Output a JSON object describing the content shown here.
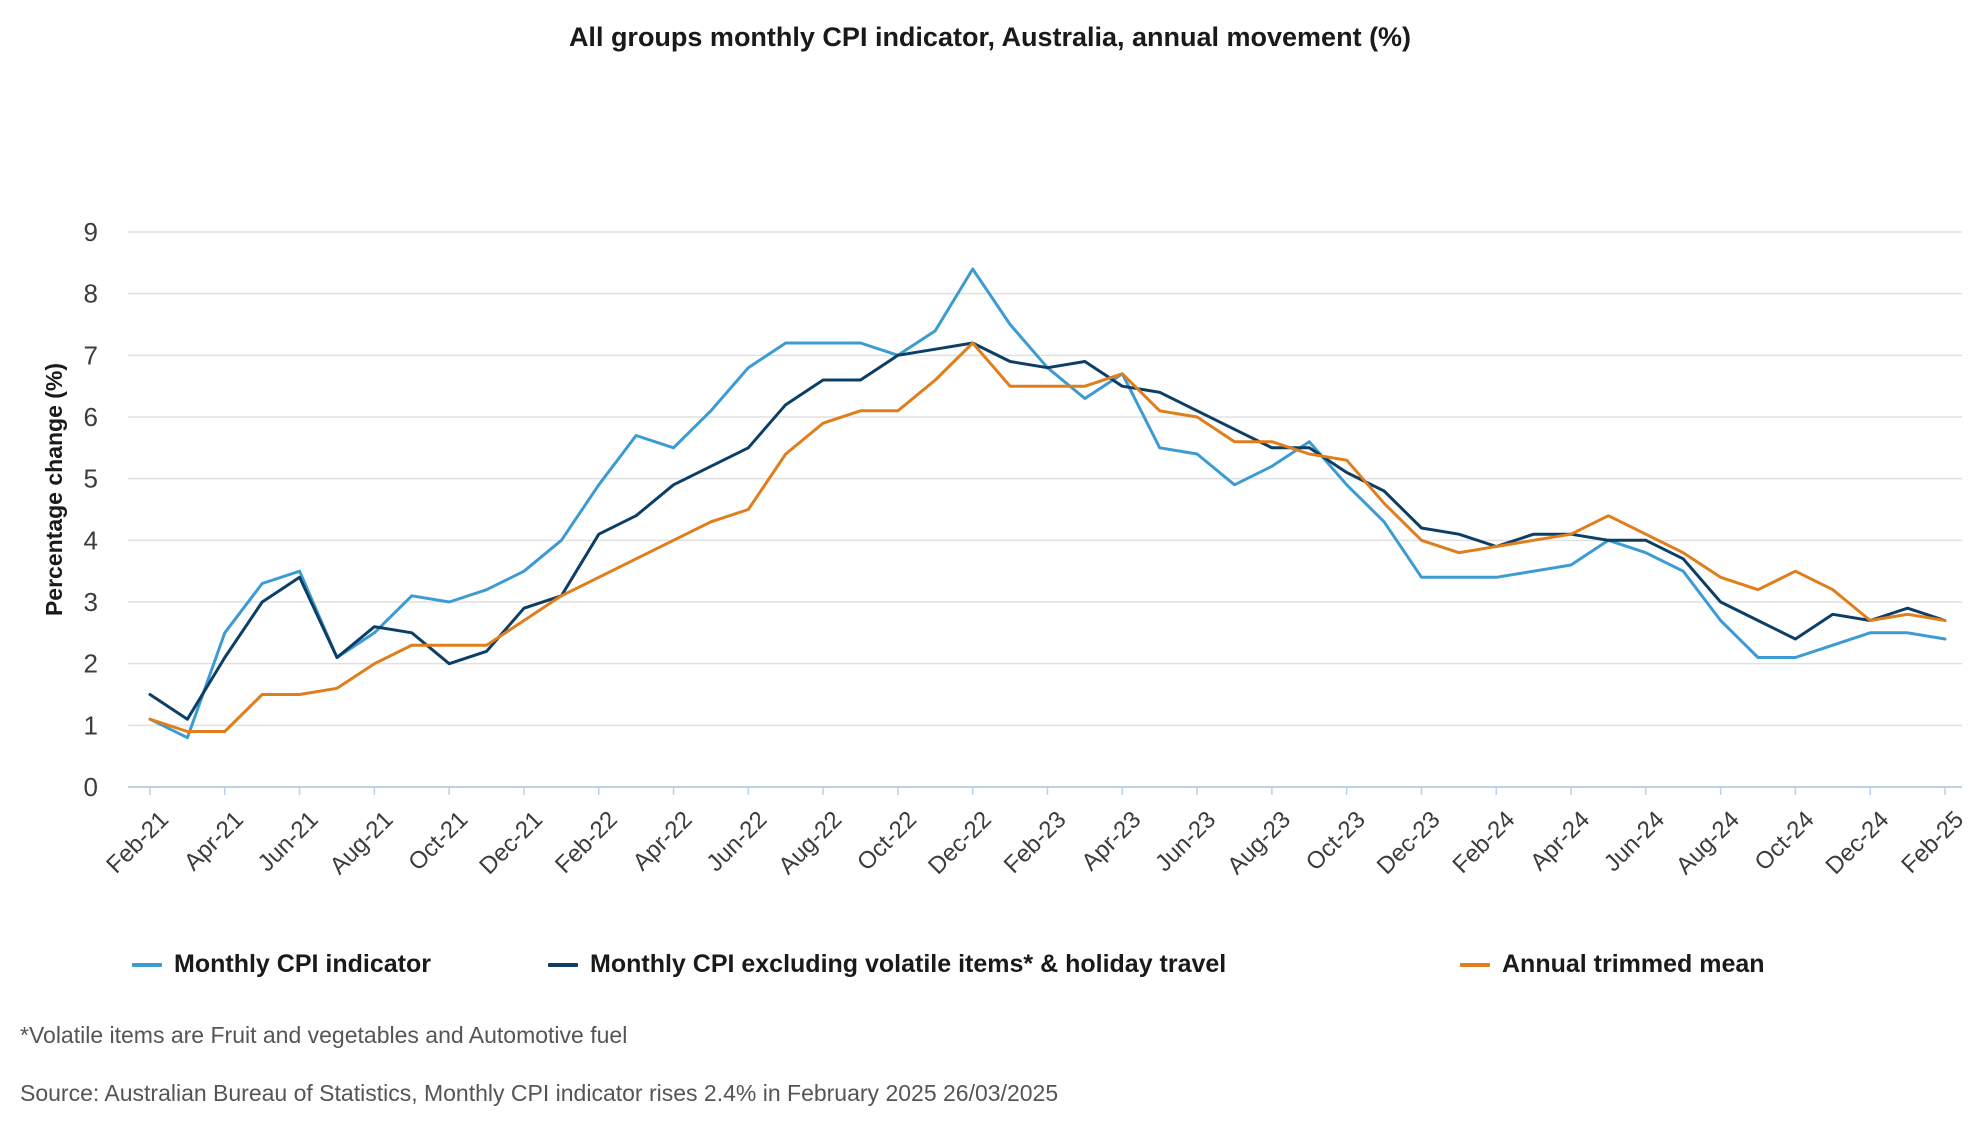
{
  "chart_data": {
    "type": "line",
    "title": "All groups monthly CPI indicator, Australia, annual movement (%)",
    "ylabel": "Percentage change (%)",
    "xlabel": "",
    "ylim": [
      0,
      9
    ],
    "yticks": [
      0,
      1,
      2,
      3,
      4,
      5,
      6,
      7,
      8,
      9
    ],
    "grid": true,
    "legend_position": "bottom",
    "x": [
      "Feb-21",
      "Mar-21",
      "Apr-21",
      "May-21",
      "Jun-21",
      "Jul-21",
      "Aug-21",
      "Sep-21",
      "Oct-21",
      "Nov-21",
      "Dec-21",
      "Jan-22",
      "Feb-22",
      "Mar-22",
      "Apr-22",
      "May-22",
      "Jun-22",
      "Jul-22",
      "Aug-22",
      "Sep-22",
      "Oct-22",
      "Nov-22",
      "Dec-22",
      "Jan-23",
      "Feb-23",
      "Mar-23",
      "Apr-23",
      "May-23",
      "Jun-23",
      "Jul-23",
      "Aug-23",
      "Sep-23",
      "Oct-23",
      "Nov-23",
      "Dec-23",
      "Jan-24",
      "Feb-24",
      "Mar-24",
      "Apr-24",
      "May-24",
      "Jun-24",
      "Jul-24",
      "Aug-24",
      "Sep-24",
      "Oct-24",
      "Nov-24",
      "Dec-24",
      "Jan-25",
      "Feb-25"
    ],
    "x_tick_labels": [
      "Feb-21",
      "Apr-21",
      "Jun-21",
      "Aug-21",
      "Oct-21",
      "Dec-21",
      "Feb-22",
      "Apr-22",
      "Jun-22",
      "Aug-22",
      "Oct-22",
      "Dec-22",
      "Feb-23",
      "Apr-23",
      "Jun-23",
      "Aug-23",
      "Oct-23",
      "Dec-23",
      "Feb-24",
      "Apr-24",
      "Jun-24",
      "Aug-24",
      "Oct-24",
      "Dec-24",
      "Feb-25"
    ],
    "series": [
      {
        "name": "Monthly CPI indicator",
        "color": "#3d9bd3",
        "values": [
          1.1,
          0.8,
          2.5,
          3.3,
          3.5,
          2.1,
          2.5,
          3.1,
          3.0,
          3.2,
          3.5,
          4.0,
          4.9,
          5.7,
          5.5,
          6.1,
          6.8,
          7.2,
          7.2,
          7.2,
          7.0,
          7.4,
          8.4,
          7.5,
          6.8,
          6.3,
          6.7,
          5.5,
          5.4,
          4.9,
          5.2,
          5.6,
          4.9,
          4.3,
          3.4,
          3.4,
          3.4,
          3.5,
          3.6,
          4.0,
          3.8,
          3.5,
          2.7,
          2.1,
          2.1,
          2.3,
          2.5,
          2.5,
          2.4
        ]
      },
      {
        "name": "Monthly CPI excluding volatile items* & holiday travel",
        "color": "#0d3f66",
        "values": [
          1.5,
          1.1,
          2.1,
          3.0,
          3.4,
          2.1,
          2.6,
          2.5,
          2.0,
          2.2,
          2.9,
          3.1,
          4.1,
          4.4,
          4.9,
          5.2,
          5.5,
          6.2,
          6.6,
          6.6,
          7.0,
          7.1,
          7.2,
          6.9,
          6.8,
          6.9,
          6.5,
          6.4,
          6.1,
          5.8,
          5.5,
          5.5,
          5.1,
          4.8,
          4.2,
          4.1,
          3.9,
          4.1,
          4.1,
          4.0,
          4.0,
          3.7,
          3.0,
          2.7,
          2.4,
          2.8,
          2.7,
          2.9,
          2.7
        ]
      },
      {
        "name": "Annual trimmed mean",
        "color": "#e07e1b",
        "values": [
          1.1,
          0.9,
          0.9,
          1.5,
          1.5,
          1.6,
          2.0,
          2.3,
          2.3,
          2.3,
          2.7,
          3.1,
          3.4,
          3.7,
          4.0,
          4.3,
          4.5,
          5.4,
          5.9,
          6.1,
          6.1,
          6.6,
          7.2,
          6.5,
          6.5,
          6.5,
          6.7,
          6.1,
          6.0,
          5.6,
          5.6,
          5.4,
          5.3,
          4.6,
          4.0,
          3.8,
          3.9,
          4.0,
          4.1,
          4.4,
          4.1,
          3.8,
          3.4,
          3.2,
          3.5,
          3.2,
          2.7,
          2.8,
          2.7
        ]
      }
    ]
  },
  "footnote": "*Volatile items are Fruit and vegetables and Automotive fuel",
  "source": "Source: Australian Bureau of Statistics, Monthly CPI indicator rises 2.4% in February 2025 26/03/2025"
}
